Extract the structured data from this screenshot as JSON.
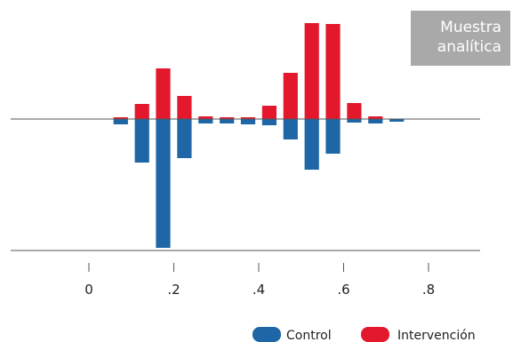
{
  "annotation": {
    "line1": "Muestra",
    "line2": "analítica"
  },
  "colors": {
    "control": "#1f66a6",
    "intervention": "#e3182d",
    "axis": "#555555",
    "annotation_bg": "#a9a9a9"
  },
  "chart_data": {
    "type": "bar",
    "title": "",
    "xlabel": "",
    "ylabel": "",
    "layout": "mirrored-histogram",
    "x_ticks": [
      0,
      0.2,
      0.4,
      0.6,
      0.8
    ],
    "x_tick_labels": [
      "0",
      ".2",
      ".4",
      ".6",
      ".8"
    ],
    "xlim": [
      -0.2,
      0.95
    ],
    "bin_width": 0.05,
    "legend_position": "bottom-right",
    "series": [
      {
        "name": "Intervención",
        "direction": "up",
        "x": [
          0.075,
          0.125,
          0.175,
          0.225,
          0.275,
          0.325,
          0.375,
          0.425,
          0.475,
          0.525,
          0.575,
          0.625,
          0.675,
          0.725
        ],
        "values": [
          0.02,
          0.17,
          0.57,
          0.26,
          0.03,
          0.02,
          0.02,
          0.15,
          0.52,
          1.08,
          1.07,
          0.18,
          0.03,
          0.0
        ]
      },
      {
        "name": "Control",
        "direction": "down",
        "x": [
          0.075,
          0.125,
          0.175,
          0.225,
          0.275,
          0.325,
          0.375,
          0.425,
          0.475,
          0.525,
          0.575,
          0.625,
          0.675,
          0.725
        ],
        "values": [
          0.06,
          0.49,
          1.45,
          0.44,
          0.05,
          0.05,
          0.06,
          0.07,
          0.23,
          0.57,
          0.39,
          0.04,
          0.05,
          0.03
        ]
      }
    ]
  }
}
